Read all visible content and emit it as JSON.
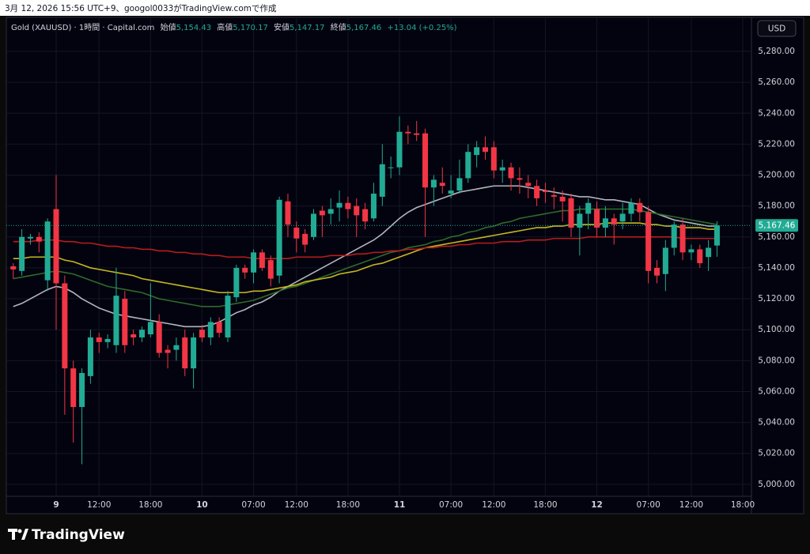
{
  "chart_data": {
    "type": "candlestick",
    "caption": "3月 12, 2026 15:56 UTC+9、googol0033がTradingView.comで作成",
    "legend": {
      "symbol": "Gold (XAUUSD) · 1時間 · Capital.com",
      "items": [
        {
          "label": "始値",
          "value": "5,154.43"
        },
        {
          "label": "高値",
          "value": "5,170.17"
        },
        {
          "label": "安値",
          "value": "5,147.17"
        },
        {
          "label": "終値",
          "value": "5,167.46"
        }
      ],
      "change": "+13.04 (+0.25%)"
    },
    "currency": "USD",
    "last_price_label": "5,167.46",
    "brand": "TradingView",
    "up_color": "#22ab94",
    "down_color": "#f23645",
    "categories": [
      null,
      null,
      null,
      null,
      null,
      "9",
      null,
      null,
      null,
      null,
      "12:00",
      null,
      null,
      null,
      null,
      null,
      "18:00",
      null,
      null,
      null,
      null,
      null,
      "10",
      null,
      null,
      null,
      null,
      null,
      "07:00",
      null,
      null,
      null,
      null,
      "12:00",
      null,
      null,
      null,
      null,
      null,
      "18:00",
      null,
      null,
      null,
      null,
      null,
      "11",
      null,
      null,
      null,
      null,
      null,
      "07:00",
      null,
      null,
      null,
      null,
      "12:00",
      null,
      null,
      null,
      null,
      null,
      "18:00",
      null,
      null,
      null,
      null,
      null,
      "12",
      null,
      null,
      null,
      null,
      null,
      "07:00",
      null,
      null,
      null,
      null,
      "12:00",
      null,
      null,
      null,
      null,
      null,
      "18:00"
    ],
    "open": [
      5141,
      5138,
      5159,
      5160,
      5132,
      5178,
      5130,
      5075,
      5050,
      5070,
      5095,
      5092,
      5090,
      5120,
      5097,
      5095,
      5097,
      5105,
      5087,
      5087,
      5095,
      5075,
      5100,
      5095,
      5105,
      5095,
      5121,
      5140,
      5137,
      5150,
      5145,
      5135,
      5183,
      5166,
      5162,
      5160,
      5177,
      5175,
      5179,
      5182,
      5180,
      5178,
      5172,
      5186,
      5205,
      5205,
      5228,
      5227,
      5227,
      5192,
      5195,
      5188,
      5190,
      5198,
      5213,
      5218,
      5218,
      5203,
      5205,
      5198,
      5195,
      5193,
      5190,
      5187,
      5186,
      5185,
      5166,
      5175,
      5178,
      5166,
      5172,
      5170,
      5175,
      5182,
      5176,
      5140,
      5136,
      5153,
      5168,
      5150,
      5152,
      5147,
      5154.43,
      null,
      null,
      null
    ],
    "high": [
      5143,
      5165,
      5162,
      5163,
      5172,
      5200,
      5135,
      5080,
      5075,
      5100,
      5098,
      5097,
      5140,
      5125,
      5100,
      5102,
      5130,
      5110,
      5090,
      5095,
      5100,
      5098,
      5103,
      5108,
      5108,
      5125,
      5142,
      5142,
      5152,
      5152,
      5148,
      5186,
      5188,
      5170,
      5165,
      5178,
      5180,
      5185,
      5190,
      5186,
      5185,
      5182,
      5195,
      5220,
      5212,
      5238,
      5232,
      5235,
      5230,
      5200,
      5205,
      5200,
      5210,
      5220,
      5222,
      5225,
      5222,
      5210,
      5208,
      5205,
      5200,
      5197,
      5195,
      5192,
      5190,
      5188,
      5180,
      5185,
      5183,
      5180,
      5175,
      5182,
      5185,
      5185,
      5180,
      5145,
      5158,
      5170,
      5172,
      5155,
      5155,
      5158,
      5170.17,
      null,
      null,
      null
    ],
    "low": [
      5133,
      5135,
      5155,
      5150,
      5125,
      5100,
      5045,
      5027,
      5013,
      5065,
      5085,
      5088,
      5085,
      5085,
      5090,
      5092,
      5095,
      5082,
      5075,
      5080,
      5070,
      5062,
      5092,
      5090,
      5095,
      5092,
      5118,
      5133,
      5130,
      5138,
      5128,
      5130,
      5160,
      5150,
      5150,
      5158,
      5160,
      5168,
      5170,
      5172,
      5160,
      5165,
      5170,
      5180,
      5198,
      5200,
      5220,
      5222,
      5160,
      5180,
      5188,
      5185,
      5188,
      5195,
      5205,
      5210,
      5198,
      5195,
      5190,
      5188,
      5185,
      5180,
      5182,
      5178,
      5170,
      5160,
      5148,
      5165,
      5160,
      5160,
      5155,
      5165,
      5170,
      5170,
      5130,
      5130,
      5125,
      5148,
      5145,
      5145,
      5140,
      5138,
      5147.17,
      null,
      null,
      null
    ],
    "close": [
      5139,
      5160,
      5160,
      5157,
      5170,
      5130,
      5075,
      5050,
      5072,
      5095,
      5092,
      5094,
      5122,
      5090,
      5095,
      5100,
      5105,
      5085,
      5085,
      5090,
      5075,
      5095,
      5095,
      5105,
      5098,
      5122,
      5140,
      5137,
      5150,
      5140,
      5133,
      5184,
      5168,
      5159,
      5155,
      5175,
      5174,
      5178,
      5182,
      5178,
      5174,
      5170,
      5188,
      5207,
      5205,
      5228,
      5227,
      5226,
      5192,
      5197,
      5193,
      5190,
      5198,
      5215,
      5218,
      5215,
      5203,
      5205,
      5198,
      5197,
      5193,
      5185,
      5189,
      5186,
      5183,
      5166,
      5175,
      5182,
      5166,
      5172,
      5168,
      5175,
      5182,
      5176,
      5138,
      5135,
      5153,
      5168,
      5150,
      5152,
      5143,
      5153,
      5167.46,
      null,
      null,
      null
    ],
    "lines": [
      {
        "color": "#b2b5be",
        "values": [
          5115,
          5117,
          5120,
          5123,
          5126,
          5128,
          5127,
          5124,
          5120,
          5117,
          5114,
          5112,
          5110,
          5109,
          5108,
          5107,
          5106,
          5105,
          5104,
          5103,
          5102,
          5102,
          5102,
          5103,
          5105,
          5108,
          5111,
          5113,
          5116,
          5118,
          5121,
          5125,
          5128,
          5131,
          5134,
          5137,
          5140,
          5143,
          5146,
          5149,
          5152,
          5155,
          5158,
          5162,
          5167,
          5172,
          5176,
          5179,
          5181,
          5183,
          5185,
          5187,
          5189,
          5190,
          5191,
          5192,
          5193,
          5193,
          5193,
          5193,
          5192,
          5191,
          5190,
          5189,
          5188,
          5187,
          5186,
          5186,
          5185,
          5184,
          5184,
          5183,
          5182,
          5181,
          5178,
          5175,
          5173,
          5171,
          5170,
          5169,
          5168,
          5167,
          5167,
          null,
          null,
          null
        ]
      },
      {
        "color": "#2e6b2a",
        "values": [
          5133,
          5134,
          5135,
          5136,
          5137,
          5138,
          5137,
          5136,
          5134,
          5132,
          5130,
          5128,
          5127,
          5126,
          5125,
          5124,
          5122,
          5120,
          5119,
          5118,
          5117,
          5116,
          5115,
          5115,
          5115,
          5116,
          5117,
          5118,
          5119,
          5121,
          5123,
          5125,
          5127,
          5128,
          5130,
          5132,
          5134,
          5136,
          5138,
          5140,
          5142,
          5144,
          5146,
          5148,
          5150,
          5151,
          5153,
          5154,
          5155,
          5157,
          5158,
          5160,
          5161,
          5163,
          5164,
          5166,
          5167,
          5169,
          5170,
          5172,
          5173,
          5174,
          5175,
          5176,
          5177,
          5177,
          5178,
          5178,
          5178,
          5178,
          5178,
          5178,
          5178,
          5177,
          5176,
          5175,
          5174,
          5173,
          5172,
          5171,
          5170,
          5169,
          5168,
          null,
          null,
          null
        ]
      },
      {
        "color": "#c6b81e",
        "values": [
          5146,
          5146,
          5147,
          5147,
          5147,
          5147,
          5145,
          5144,
          5142,
          5140,
          5139,
          5138,
          5137,
          5136,
          5135,
          5133,
          5132,
          5131,
          5130,
          5129,
          5128,
          5127,
          5126,
          5125,
          5124,
          5124,
          5124,
          5124,
          5125,
          5125,
          5126,
          5127,
          5128,
          5129,
          5131,
          5132,
          5133,
          5134,
          5136,
          5137,
          5138,
          5140,
          5142,
          5143,
          5145,
          5147,
          5149,
          5151,
          5153,
          5154,
          5155,
          5156,
          5157,
          5158,
          5159,
          5160,
          5161,
          5162,
          5163,
          5164,
          5165,
          5166,
          5166,
          5167,
          5167,
          5168,
          5168,
          5168,
          5168,
          5169,
          5169,
          5169,
          5169,
          5169,
          5168,
          5168,
          5167,
          5167,
          5166,
          5166,
          5166,
          5165,
          5165,
          null,
          null,
          null
        ]
      },
      {
        "color": "#b71c1c",
        "values": [
          5157,
          5157,
          5157,
          5158,
          5158,
          5158,
          5157,
          5157,
          5156,
          5156,
          5155,
          5154,
          5154,
          5153,
          5153,
          5152,
          5152,
          5151,
          5151,
          5150,
          5150,
          5149,
          5149,
          5148,
          5148,
          5147,
          5147,
          5147,
          5146,
          5146,
          5146,
          5146,
          5146,
          5147,
          5147,
          5147,
          5147,
          5148,
          5148,
          5148,
          5149,
          5149,
          5150,
          5150,
          5151,
          5151,
          5152,
          5152,
          5153,
          5153,
          5154,
          5154,
          5155,
          5155,
          5156,
          5156,
          5156,
          5157,
          5157,
          5157,
          5158,
          5158,
          5158,
          5159,
          5159,
          5159,
          5159,
          5160,
          5160,
          5160,
          5160,
          5160,
          5160,
          5160,
          5160,
          5160,
          5160,
          5160,
          5159,
          5159,
          5159,
          5159,
          5159,
          null,
          null,
          null
        ]
      }
    ],
    "ylim": [
      4981,
      5302
    ],
    "yticks": [
      {
        "value": 5000,
        "label": "5,000.00"
      },
      {
        "value": 5020,
        "label": "5,020.00"
      },
      {
        "value": 5040,
        "label": "5,040.00"
      },
      {
        "value": 5060,
        "label": "5,060.00"
      },
      {
        "value": 5080,
        "label": "5,080.00"
      },
      {
        "value": 5100,
        "label": "5,100.00"
      },
      {
        "value": 5120,
        "label": "5,120.00"
      },
      {
        "value": 5140,
        "label": "5,140.00"
      },
      {
        "value": 5160,
        "label": "5,160.00"
      },
      {
        "value": 5180,
        "label": "5,180.00"
      },
      {
        "value": 5200,
        "label": "5,200.00"
      },
      {
        "value": 5220,
        "label": "5,220.00"
      },
      {
        "value": 5240,
        "label": "5,240.00"
      },
      {
        "value": 5260,
        "label": "5,260.00"
      },
      {
        "value": 5280,
        "label": "5,280.00"
      }
    ],
    "grid": true
  }
}
